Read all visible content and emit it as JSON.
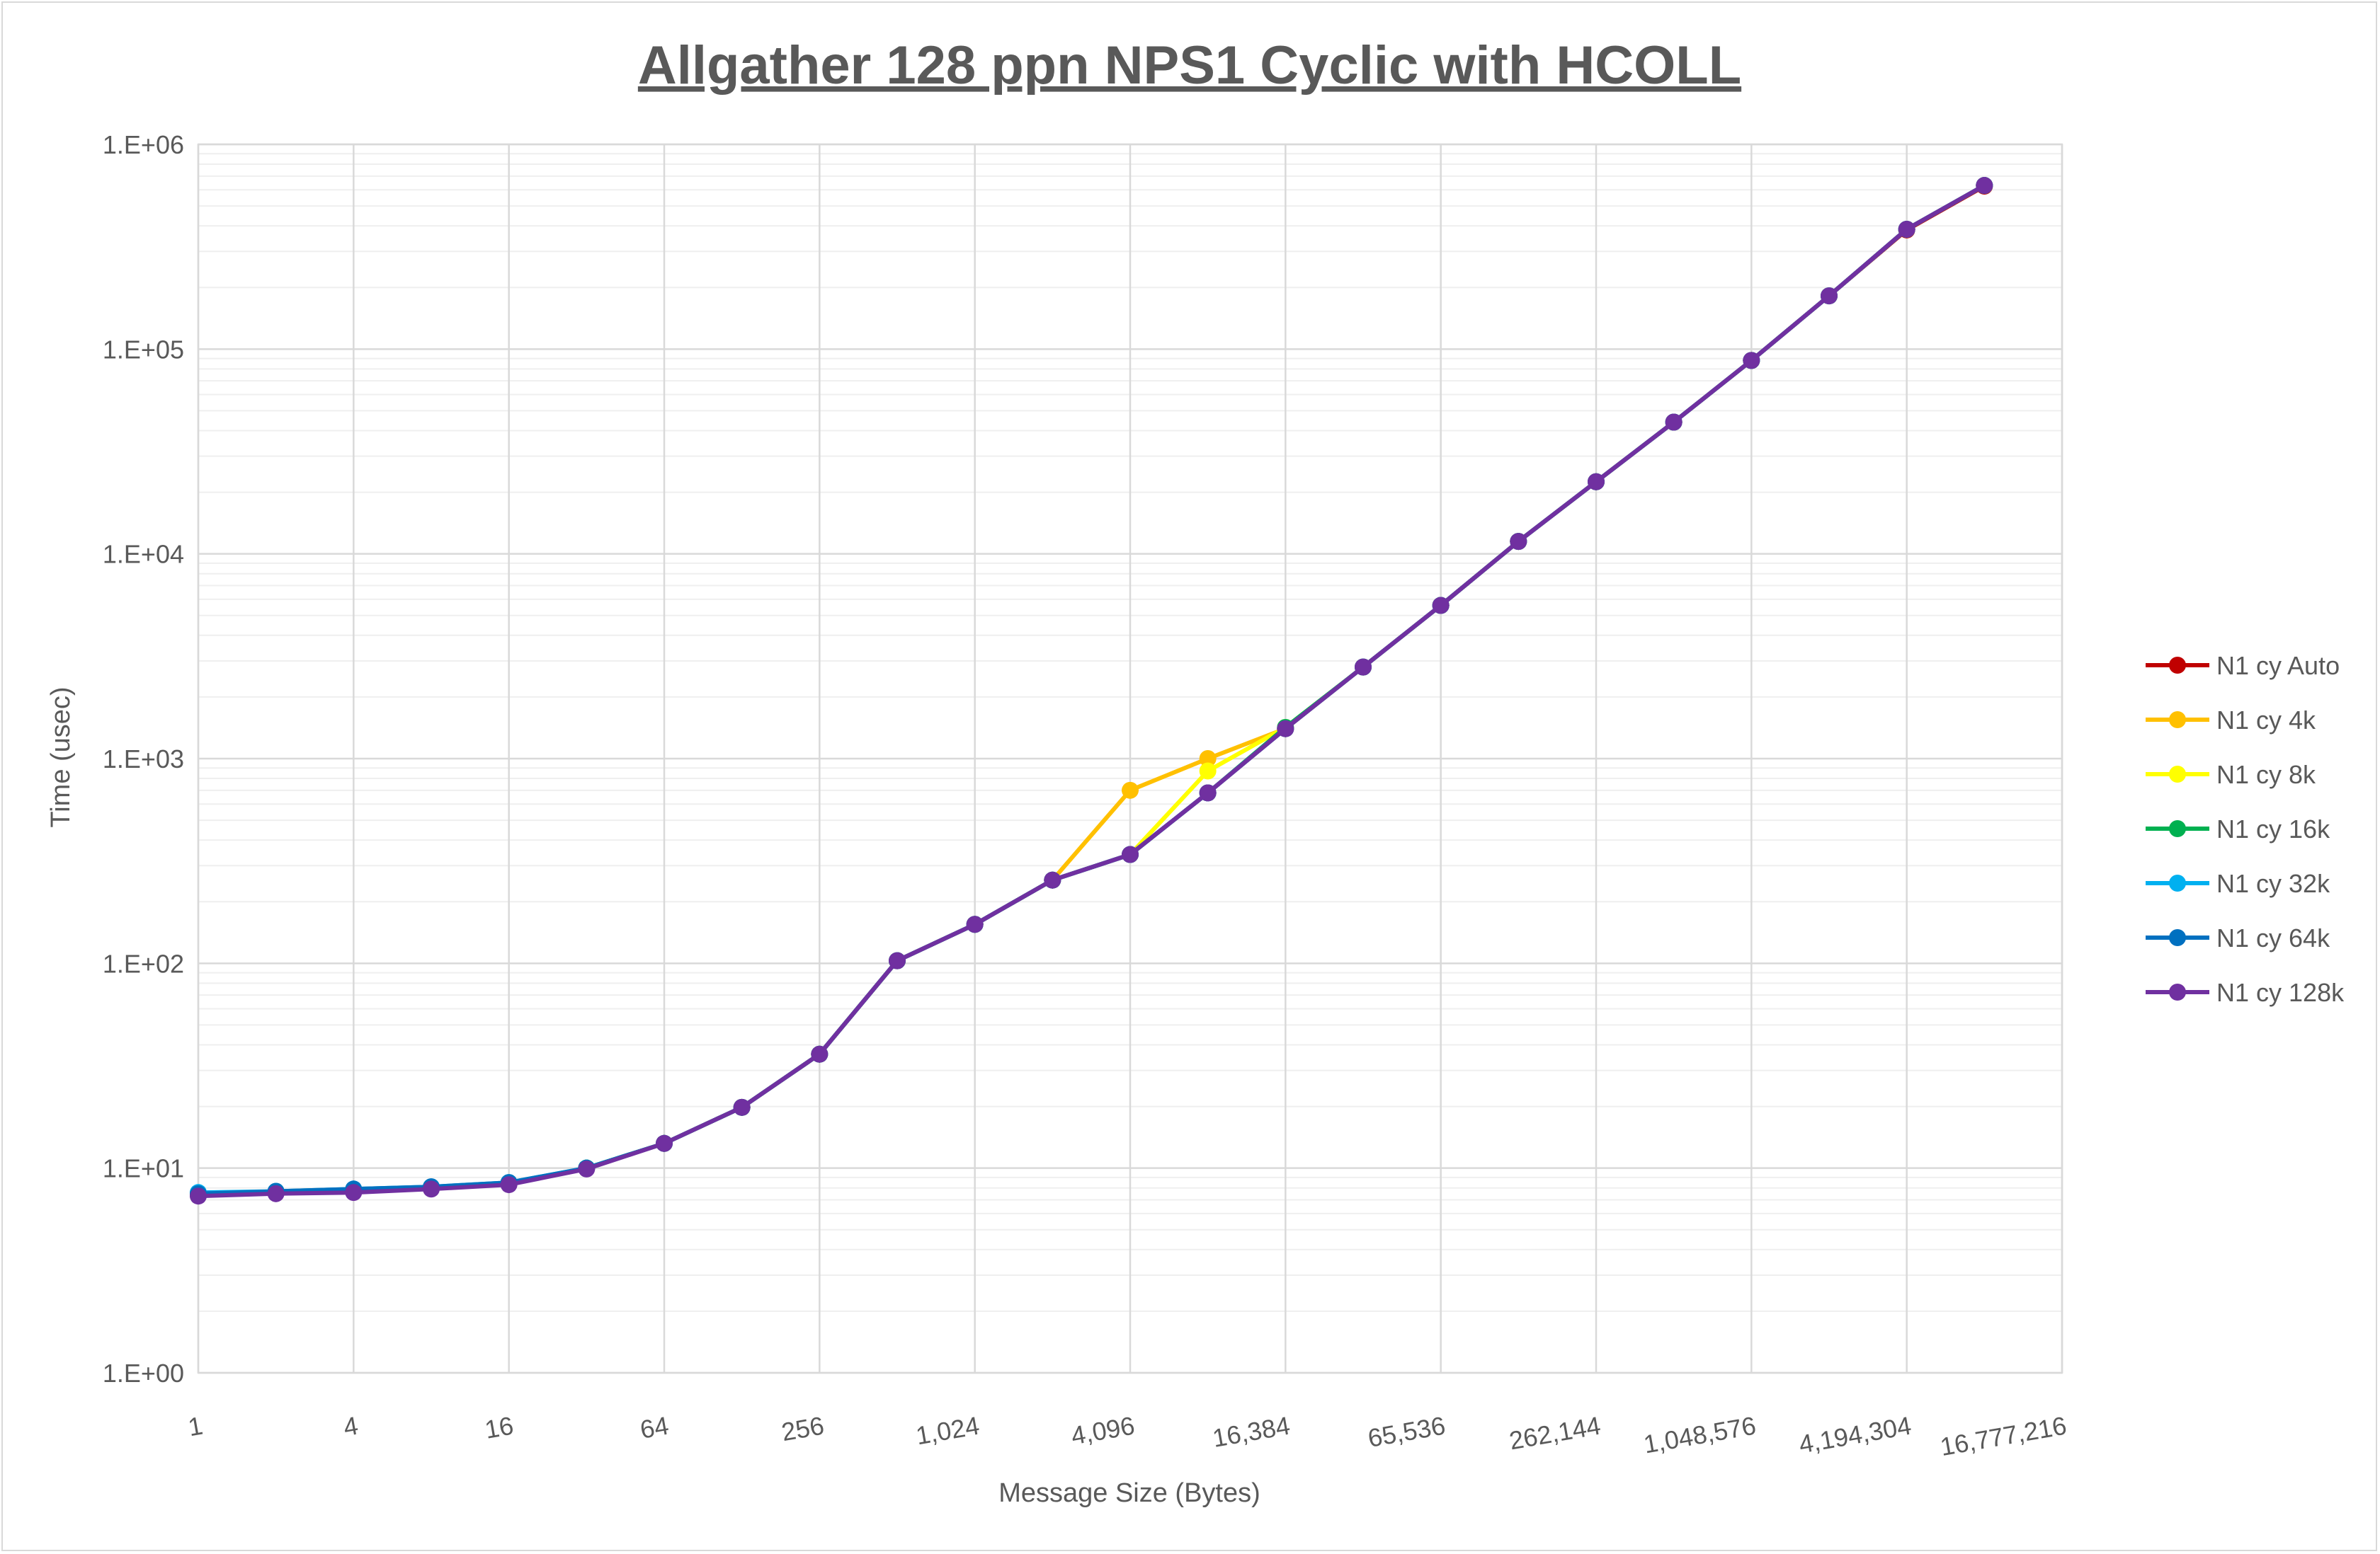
{
  "chart_data": {
    "type": "line",
    "title": "Allgather 128 ppn NPS1 Cyclic with HCOLL",
    "xlabel": "Message Size (Bytes)",
    "ylabel": "Time (usec)",
    "x_scale": "log2",
    "y_scale": "log10",
    "ylim": [
      1,
      1000000
    ],
    "y_tick_labels": [
      "1.E+00",
      "1.E+01",
      "1.E+02",
      "1.E+03",
      "1.E+04",
      "1.E+05",
      "1.E+06"
    ],
    "x": [
      1,
      2,
      4,
      8,
      16,
      32,
      64,
      128,
      256,
      512,
      1024,
      2048,
      4096,
      8192,
      16384,
      32768,
      65536,
      131072,
      262144,
      524288,
      1048576,
      2097152,
      4194304,
      8388608
    ],
    "x_tick_labels": [
      "1",
      "4",
      "16",
      "64",
      "256",
      "1,024",
      "4,096",
      "16,384",
      "65,536",
      "262,144",
      "1,048,576",
      "4,194,304",
      "16,777,216"
    ],
    "grid": true,
    "legend_position": "right",
    "series": [
      {
        "name": "N1 cy Auto",
        "color": "#c00000",
        "values": [
          7.4,
          7.6,
          7.8,
          8.0,
          8.4,
          10.0,
          13.2,
          19.8,
          36,
          103,
          155,
          255,
          340,
          680,
          1400,
          2800,
          5600,
          11500,
          22500,
          44000,
          88000,
          182000,
          382000,
          625000
        ]
      },
      {
        "name": "N1 cy 4k",
        "color": "#ffc000",
        "values": [
          7.4,
          7.6,
          7.8,
          8.0,
          8.4,
          10.0,
          13.2,
          19.8,
          36,
          103,
          155,
          255,
          700,
          1000,
          1400,
          2800,
          5600,
          11500,
          22500,
          44000,
          88000,
          182000,
          385000,
          630000
        ]
      },
      {
        "name": "N1 cy 8k",
        "color": "#ffff00",
        "values": [
          7.4,
          7.6,
          7.8,
          8.0,
          8.4,
          10.0,
          13.2,
          19.8,
          36,
          103,
          155,
          255,
          340,
          870,
          1420,
          2800,
          5600,
          11500,
          22500,
          44000,
          88000,
          182000,
          385000,
          630000
        ]
      },
      {
        "name": "N1 cy 16k",
        "color": "#00b050",
        "values": [
          7.4,
          7.6,
          7.8,
          8.0,
          8.4,
          10.0,
          13.2,
          19.8,
          36,
          103,
          155,
          255,
          340,
          680,
          1420,
          2800,
          5600,
          11500,
          22500,
          44000,
          88000,
          182000,
          385000,
          630000
        ]
      },
      {
        "name": "N1 cy 32k",
        "color": "#00b0f0",
        "values": [
          7.6,
          7.7,
          7.9,
          8.1,
          8.5,
          10.0,
          13.2,
          19.8,
          36,
          103,
          155,
          255,
          340,
          680,
          1400,
          2800,
          5600,
          11500,
          22500,
          44000,
          88000,
          182000,
          385000,
          630000
        ]
      },
      {
        "name": "N1 cy 64k",
        "color": "#0070c0",
        "values": [
          7.5,
          7.7,
          7.9,
          8.1,
          8.5,
          10.0,
          13.2,
          19.8,
          36,
          103,
          155,
          255,
          340,
          680,
          1400,
          2800,
          5600,
          11500,
          22500,
          44000,
          88000,
          182000,
          385000,
          630000
        ]
      },
      {
        "name": "N1 cy 128k",
        "color": "#7030a0",
        "values": [
          7.3,
          7.5,
          7.6,
          7.9,
          8.3,
          9.9,
          13.2,
          19.8,
          36,
          103,
          155,
          255,
          340,
          680,
          1400,
          2800,
          5600,
          11500,
          22500,
          44000,
          88000,
          182000,
          385000,
          630000
        ]
      }
    ]
  }
}
